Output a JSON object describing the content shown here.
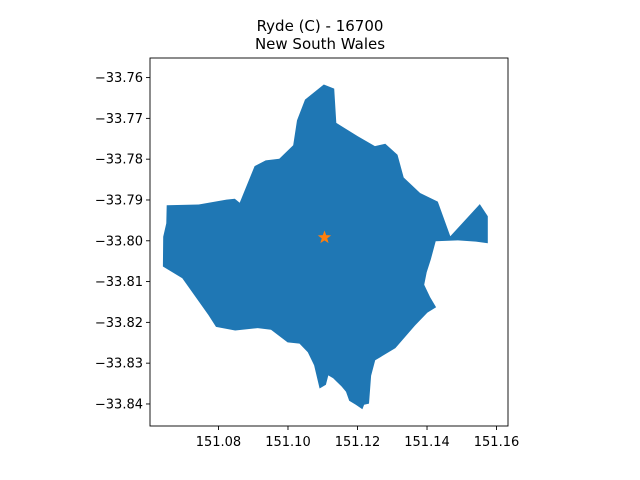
{
  "title": {
    "line1": "Ryde (C) - 16700",
    "line2": "New South Wales"
  },
  "colors": {
    "region_fill": "#1f77b4",
    "marker": "#ff7f0e",
    "axes": "#000000"
  },
  "chart_data": {
    "type": "map",
    "region": "Ryde (C) - 16700",
    "state": "New South Wales",
    "xlim": [
      151.0603,
      151.1633
    ],
    "ylim": [
      -33.8454,
      -33.7552
    ],
    "x_ticks": [
      "151.08",
      "151.10",
      "151.12",
      "151.14",
      "151.16"
    ],
    "x_tick_values": [
      151.08,
      151.1,
      151.12,
      151.14,
      151.16
    ],
    "y_ticks": [
      "−33.76",
      "−33.77",
      "−33.78",
      "−33.79",
      "−33.80",
      "−33.81",
      "−33.82",
      "−33.83",
      "−33.84"
    ],
    "y_tick_values": [
      -33.76,
      -33.77,
      -33.78,
      -33.79,
      -33.8,
      -33.81,
      -33.82,
      -33.83,
      -33.84
    ],
    "centroid": {
      "lon": 151.1105,
      "lat": -33.7992,
      "marker": "star"
    },
    "boundary": [
      [
        151.0823,
        -33.7899
      ],
      [
        151.0847,
        -33.7897
      ],
      [
        151.0861,
        -33.7907
      ],
      [
        151.0904,
        -33.7817
      ],
      [
        151.0936,
        -33.7803
      ],
      [
        151.0975,
        -33.7799
      ],
      [
        151.1015,
        -33.7766
      ],
      [
        151.1026,
        -33.7705
      ],
      [
        151.1049,
        -33.7654
      ],
      [
        151.1103,
        -33.7617
      ],
      [
        151.1133,
        -33.7627
      ],
      [
        151.1139,
        -33.7711
      ],
      [
        151.1201,
        -33.7744
      ],
      [
        151.125,
        -33.7768
      ],
      [
        151.128,
        -33.7762
      ],
      [
        151.1315,
        -33.7789
      ],
      [
        151.1333,
        -33.7845
      ],
      [
        151.138,
        -33.7883
      ],
      [
        151.1431,
        -33.7904
      ],
      [
        151.1467,
        -33.7989
      ],
      [
        151.1552,
        -33.791
      ],
      [
        151.1575,
        -33.794
      ],
      [
        151.1575,
        -33.8006
      ],
      [
        151.1541,
        -33.8002
      ],
      [
        151.1489,
        -33.7999
      ],
      [
        151.1425,
        -33.8001
      ],
      [
        151.1411,
        -33.8046
      ],
      [
        151.1399,
        -33.8077
      ],
      [
        151.1392,
        -33.8108
      ],
      [
        151.1409,
        -33.8138
      ],
      [
        151.1426,
        -33.8163
      ],
      [
        151.1401,
        -33.8176
      ],
      [
        151.1365,
        -33.8208
      ],
      [
        151.1309,
        -33.8263
      ],
      [
        151.1251,
        -33.8293
      ],
      [
        151.1239,
        -33.8331
      ],
      [
        151.1233,
        -33.8399
      ],
      [
        151.1219,
        -33.8402
      ],
      [
        151.1214,
        -33.8413
      ],
      [
        151.1195,
        -33.8402
      ],
      [
        151.1176,
        -33.8392
      ],
      [
        151.1167,
        -33.837
      ],
      [
        151.1154,
        -33.8357
      ],
      [
        151.113,
        -33.8337
      ],
      [
        151.1116,
        -33.833
      ],
      [
        151.1109,
        -33.8353
      ],
      [
        151.1091,
        -33.8362
      ],
      [
        151.1075,
        -33.8305
      ],
      [
        151.1057,
        -33.8273
      ],
      [
        151.1033,
        -33.8252
      ],
      [
        151.0999,
        -33.8249
      ],
      [
        151.0951,
        -33.8218
      ],
      [
        151.0913,
        -33.8214
      ],
      [
        151.0848,
        -33.822
      ],
      [
        151.0793,
        -33.8211
      ],
      [
        151.0771,
        -33.8182
      ],
      [
        151.0696,
        -33.8092
      ],
      [
        151.064,
        -33.8063
      ],
      [
        151.0641,
        -33.799
      ],
      [
        151.065,
        -33.7957
      ],
      [
        151.0651,
        -33.7913
      ],
      [
        151.0743,
        -33.7911
      ],
      [
        151.0823,
        -33.7899
      ]
    ]
  }
}
